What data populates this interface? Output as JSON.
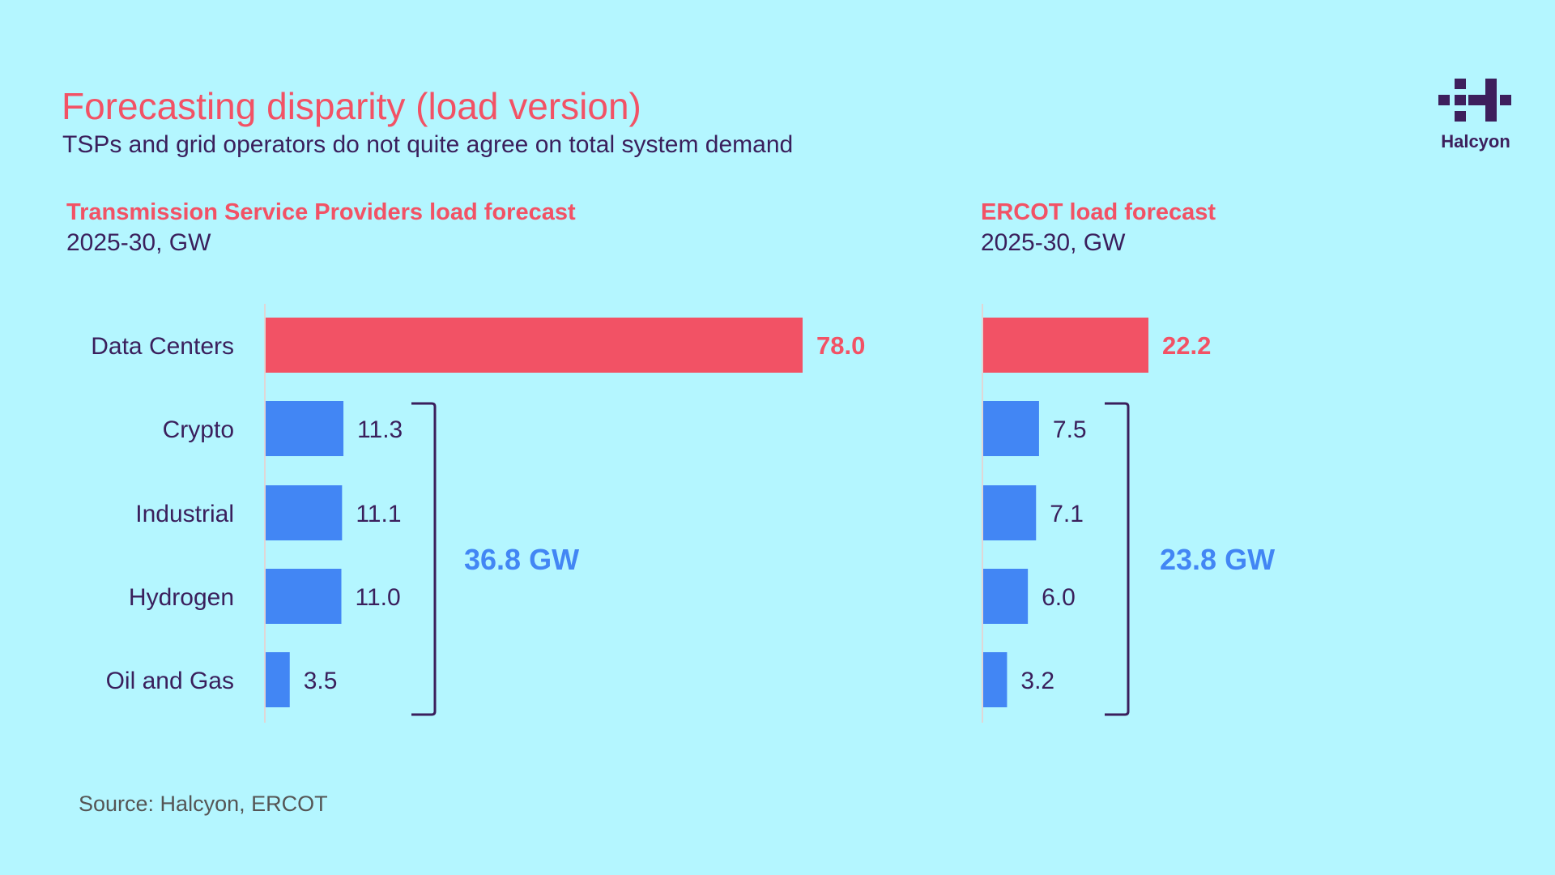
{
  "header": {
    "title": "Forecasting disparity (load version)",
    "subtitle": "TSPs and grid operators do not quite agree on total system demand"
  },
  "logo": {
    "icon": "halcyon-logo-icon",
    "text": "Halcyon"
  },
  "colors": {
    "background": "#b4f6ff",
    "highlight": "#f25265",
    "bar": "#4286f4",
    "text": "#3a1f5c",
    "axis": "#e0d6d6"
  },
  "source": "Source: Halcyon, ERCOT",
  "chart_data": [
    {
      "type": "bar",
      "orientation": "horizontal",
      "title": "Transmission Service Providers load forecast",
      "subtitle": "2025-30, GW",
      "categories": [
        "Data Centers",
        "Crypto",
        "Industrial",
        "Hydrogen",
        "Oil and Gas"
      ],
      "values": [
        78.0,
        11.3,
        11.1,
        11.0,
        3.5
      ],
      "value_labels": [
        "78.0",
        "11.3",
        "11.1",
        "11.0",
        "3.5"
      ],
      "highlight_index": 0,
      "bracket_total": {
        "from": "Crypto",
        "to": "Oil and Gas",
        "label": "36.8 GW"
      },
      "xlim": [
        0,
        78
      ]
    },
    {
      "type": "bar",
      "orientation": "horizontal",
      "title": "ERCOT load forecast",
      "subtitle": "2025-30, GW",
      "categories": [
        "Data Centers",
        "Crypto",
        "Industrial",
        "Hydrogen",
        "Oil and Gas"
      ],
      "values": [
        22.2,
        7.5,
        7.1,
        6.0,
        3.2
      ],
      "value_labels": [
        "22.2",
        "7.5",
        "7.1",
        "6.0",
        "3.2"
      ],
      "highlight_index": 0,
      "bracket_total": {
        "from": "Crypto",
        "to": "Oil and Gas",
        "label": "23.8 GW"
      },
      "xlim": [
        0,
        22.2
      ]
    }
  ]
}
